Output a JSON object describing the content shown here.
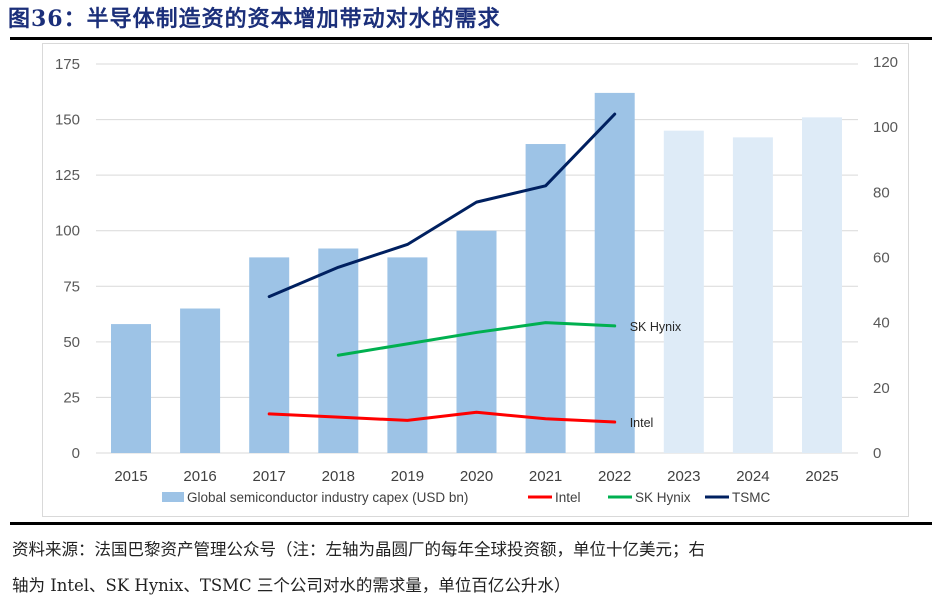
{
  "figure": {
    "title": "图36：半导体制造资的资本增加带动对水的需求",
    "source_line1": "资料来源：法国巴黎资产管理公众号（注：左轴为晶圆厂的每年全球投资额，单位十亿美元；右",
    "source_line2": "轴为 Intel、SK Hynix、TSMC 三个公司对水的需求量，单位百亿公升水）"
  },
  "chart_data": {
    "type": "bar",
    "title": "",
    "categories": [
      "2015",
      "2016",
      "2017",
      "2018",
      "2019",
      "2020",
      "2021",
      "2022",
      "2023",
      "2024",
      "2025"
    ],
    "left_axis": {
      "label": "",
      "ylim": [
        0,
        175
      ],
      "ticks": [
        0,
        25,
        50,
        75,
        100,
        125,
        150,
        175
      ]
    },
    "right_axis": {
      "label": "",
      "ylim": [
        0,
        120
      ],
      "ticks": [
        0,
        20,
        40,
        60,
        80,
        100,
        120
      ]
    },
    "grid": true,
    "legend_position": "bottom",
    "bar_series": {
      "name": "Global semiconductor industry capex (USD bn)",
      "axis": "left",
      "values": [
        58,
        65,
        88,
        92,
        88,
        100,
        139,
        162,
        145,
        142,
        151
      ],
      "forecast_from": "2023",
      "color": "#9dc3e6",
      "forecast_color": "#deebf7"
    },
    "series": [
      {
        "name": "Intel",
        "type": "line",
        "axis": "right",
        "color": "#ff0000",
        "x": [
          "2017",
          "2018",
          "2019",
          "2020",
          "2021",
          "2022"
        ],
        "values": [
          12,
          11,
          10,
          12.5,
          10.5,
          9.5
        ],
        "end_label": "Intel"
      },
      {
        "name": "SK Hynix",
        "type": "line",
        "axis": "right",
        "color": "#00b050",
        "x": [
          "2018",
          "2019",
          "2020",
          "2021",
          "2022"
        ],
        "values": [
          30,
          33.5,
          37,
          40,
          39
        ],
        "end_label": "SK Hynix"
      },
      {
        "name": "TSMC",
        "type": "line",
        "axis": "right",
        "color": "#002060",
        "x": [
          "2017",
          "2018",
          "2019",
          "2020",
          "2021",
          "2022"
        ],
        "values": [
          48,
          57,
          64,
          77,
          82,
          104
        ],
        "end_label": ""
      }
    ],
    "legend": [
      {
        "label": "Global semiconductor industry capex (USD bn)",
        "kind": "box",
        "color": "#9dc3e6"
      },
      {
        "label": "Intel",
        "kind": "line",
        "color": "#ff0000"
      },
      {
        "label": "SK Hynix",
        "kind": "line",
        "color": "#00b050"
      },
      {
        "label": "TSMC",
        "kind": "line",
        "color": "#002060"
      }
    ]
  }
}
